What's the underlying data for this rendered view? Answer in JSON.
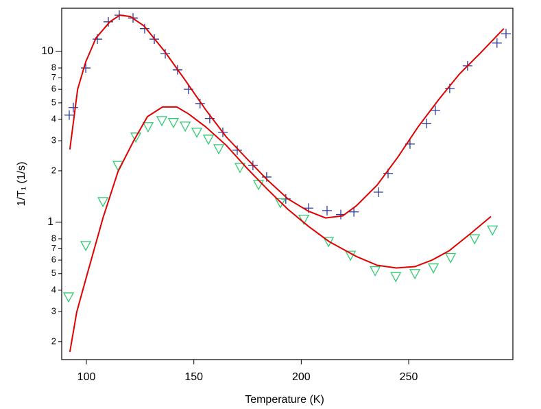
{
  "chart_data": {
    "type": "line",
    "x_label": "Temperature (K)",
    "y_label": "1/T₁ (1/s)",
    "xlim": [
      88.5,
      298.5
    ],
    "ylim": [
      0.157,
      17.9
    ],
    "log_y": true,
    "xticks": [
      100,
      150,
      200,
      250
    ],
    "yticks": [
      {
        "value": 0.2,
        "label": "2"
      },
      {
        "value": 0.3,
        "label": "3"
      },
      {
        "value": 0.4,
        "label": "4"
      },
      {
        "value": 0.5,
        "label": "5"
      },
      {
        "value": 0.6,
        "label": "6"
      },
      {
        "value": 0.7,
        "label": "7"
      },
      {
        "value": 0.8,
        "label": "8"
      },
      1,
      2,
      3,
      4,
      5,
      6,
      7,
      8,
      10
    ],
    "major_yticks": [
      1,
      10
    ],
    "series": [
      {
        "style": "marker",
        "marker": "plus",
        "color": "#2b3a9c",
        "x": [
          92.0,
          93.9,
          99.7,
          105.1,
          110.2,
          115.3,
          121.7,
          127.1,
          131.6,
          136.7,
          142.4,
          147.5,
          152.9,
          157.4,
          163.5,
          170.2,
          177.5,
          183.9,
          192.8,
          203.4,
          212.0,
          218.4,
          224.5,
          235.9,
          240.4,
          250.6,
          258.3,
          262.4,
          269.1,
          277.4,
          291.1,
          295.3
        ],
        "values": [
          4.24,
          4.69,
          8.0,
          11.8,
          14.9,
          16.3,
          15.7,
          13.6,
          11.8,
          9.7,
          7.8,
          6.0,
          4.95,
          4.05,
          3.36,
          2.64,
          2.15,
          1.84,
          1.37,
          1.21,
          1.17,
          1.11,
          1.15,
          1.5,
          1.93,
          2.87,
          3.79,
          4.52,
          6.07,
          8.24,
          11.2,
          12.7
        ]
      },
      {
        "style": "line",
        "color": "#e00000",
        "x": [
          92.3,
          95.9,
          99.7,
          104.5,
          110.9,
          115.6,
          120.4,
          126.8,
          136.4,
          145.9,
          155.5,
          165.1,
          174.6,
          184.2,
          193.8,
          203.4,
          211.3,
          219.3,
          225.7,
          235.3,
          244.8,
          254.4,
          264.0,
          273.6,
          283.1,
          294.3
        ],
        "values": [
          2.67,
          6.0,
          8.7,
          12.0,
          14.9,
          16.3,
          16.0,
          14.1,
          10.0,
          6.8,
          4.56,
          3.16,
          2.36,
          1.77,
          1.37,
          1.16,
          1.06,
          1.09,
          1.25,
          1.65,
          2.39,
          3.62,
          5.23,
          7.37,
          9.7,
          13.6
        ]
      },
      {
        "style": "marker",
        "marker": "triangle-down",
        "color": "#2ecc71",
        "x": [
          91.7,
          99.7,
          107.7,
          114.7,
          123.0,
          128.7,
          135.1,
          140.5,
          146.0,
          151.4,
          156.8,
          161.6,
          171.5,
          180.1,
          190.3,
          201.2,
          212.7,
          222.9,
          234.4,
          244.0,
          252.9,
          261.5,
          269.5,
          280.7,
          289.0
        ],
        "values": [
          0.365,
          0.73,
          1.32,
          2.15,
          3.15,
          3.62,
          3.93,
          3.83,
          3.65,
          3.36,
          3.06,
          2.69,
          2.09,
          1.66,
          1.3,
          1.04,
          0.77,
          0.64,
          0.52,
          0.48,
          0.5,
          0.54,
          0.62,
          0.8,
          0.9
        ]
      },
      {
        "style": "line",
        "color": "#e00000",
        "x": [
          92.3,
          95.5,
          99.9,
          107.7,
          114.7,
          122.0,
          128.4,
          135.4,
          142.1,
          147.5,
          155.5,
          165.1,
          174.6,
          184.2,
          193.8,
          203.4,
          213.0,
          225.7,
          235.3,
          244.2,
          252.9,
          260.8,
          268.8,
          278.4,
          288.3
        ],
        "values": [
          0.174,
          0.298,
          0.473,
          1.06,
          1.98,
          3.0,
          4.15,
          4.73,
          4.73,
          4.31,
          3.62,
          2.82,
          2.08,
          1.56,
          1.19,
          0.946,
          0.77,
          0.63,
          0.56,
          0.54,
          0.55,
          0.6,
          0.68,
          0.85,
          1.08
        ]
      }
    ]
  }
}
